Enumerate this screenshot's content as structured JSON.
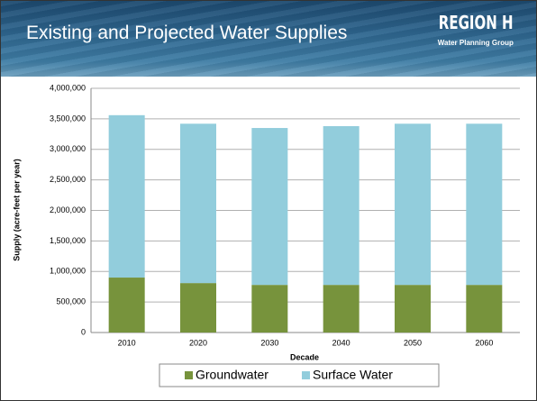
{
  "header": {
    "title": "Existing and Projected Water Supplies",
    "logo": "REGION H",
    "logo_subtitle": "Water Planning Group"
  },
  "chart_data": {
    "type": "stacked-bar",
    "x_label": "Decade",
    "y_label": "Supply (acre-feet per year)",
    "categories": [
      "2010",
      "2020",
      "2030",
      "2040",
      "2050",
      "2060"
    ],
    "series": [
      {
        "name": "Groundwater",
        "color": "#77933c",
        "values": [
          900000,
          810000,
          780000,
          780000,
          780000,
          780000
        ]
      },
      {
        "name": "Surface Water",
        "color": "#92cddc",
        "values": [
          2660000,
          2610000,
          2570000,
          2600000,
          2640000,
          2640000
        ]
      }
    ],
    "ylim": [
      0,
      4000000
    ],
    "yticks": [
      0,
      {
        "value": 500000,
        "label": "500,000"
      },
      {
        "value": 1000000,
        "label": "1,000,000"
      },
      {
        "value": 1500000,
        "label": "1,500,000"
      },
      {
        "value": 2000000,
        "label": "2,000,000"
      },
      {
        "value": 2500000,
        "label": "2,500,000"
      },
      {
        "value": 3000000,
        "label": "3,000,000"
      },
      {
        "value": 3500000,
        "label": "3,500,000"
      },
      {
        "value": 4000000,
        "label": "4,000,000"
      }
    ],
    "grid": true,
    "legend": "bottom"
  }
}
